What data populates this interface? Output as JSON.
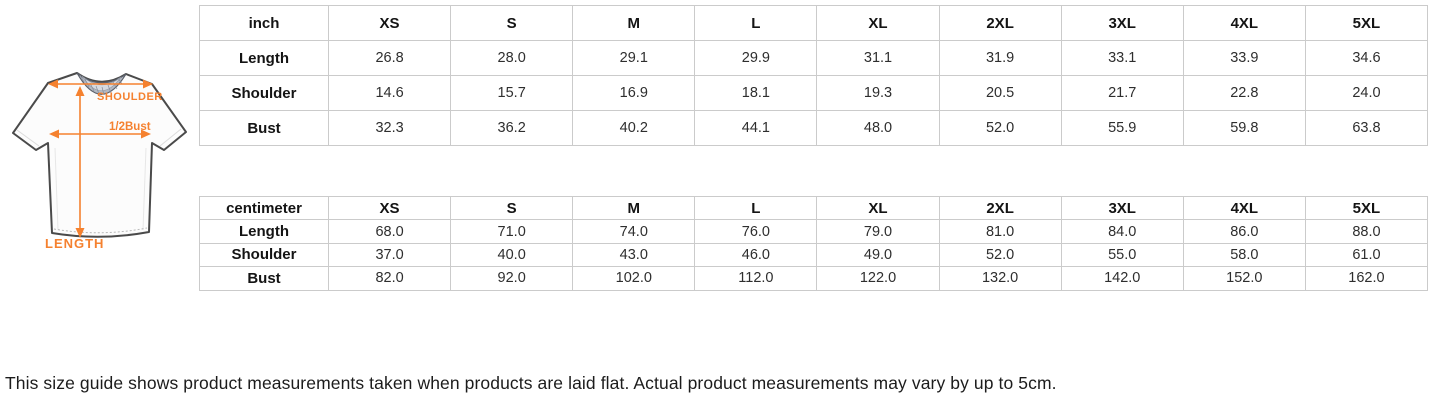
{
  "tshirt_diagram": {
    "shoulder_label": "SHOULDER",
    "half_bust_label": "1/2Bust",
    "length_label": "LENGTH",
    "accent_color": "#f5812f",
    "collar_color": "#b3b8c2",
    "outline_color": "#4a4a4a"
  },
  "inch_table": {
    "unit_header": "inch",
    "size_headers": [
      "XS",
      "S",
      "M",
      "L",
      "XL",
      "2XL",
      "3XL",
      "4XL",
      "5XL"
    ],
    "rows": [
      {
        "label": "Length",
        "values": [
          "26.8",
          "28.0",
          "29.1",
          "29.9",
          "31.1",
          "31.9",
          "33.1",
          "33.9",
          "34.6"
        ]
      },
      {
        "label": "Shoulder",
        "values": [
          "14.6",
          "15.7",
          "16.9",
          "18.1",
          "19.3",
          "20.5",
          "21.7",
          "22.8",
          "24.0"
        ]
      },
      {
        "label": "Bust",
        "values": [
          "32.3",
          "36.2",
          "40.2",
          "44.1",
          "48.0",
          "52.0",
          "55.9",
          "59.8",
          "63.8"
        ]
      }
    ]
  },
  "cm_table": {
    "unit_header": "centimeter",
    "size_headers": [
      "XS",
      "S",
      "M",
      "L",
      "XL",
      "2XL",
      "3XL",
      "4XL",
      "5XL"
    ],
    "rows": [
      {
        "label": "Length",
        "values": [
          "68.0",
          "71.0",
          "74.0",
          "76.0",
          "79.0",
          "81.0",
          "84.0",
          "86.0",
          "88.0"
        ]
      },
      {
        "label": "Shoulder",
        "values": [
          "37.0",
          "40.0",
          "43.0",
          "46.0",
          "49.0",
          "52.0",
          "55.0",
          "58.0",
          "61.0"
        ]
      },
      {
        "label": "Bust",
        "values": [
          "82.0",
          "92.0",
          "102.0",
          "112.0",
          "122.0",
          "132.0",
          "142.0",
          "152.0",
          "162.0"
        ]
      }
    ]
  },
  "footer": {
    "note": "This size guide shows product measurements taken when products are laid flat. Actual product measurements may vary by up to 5cm."
  }
}
